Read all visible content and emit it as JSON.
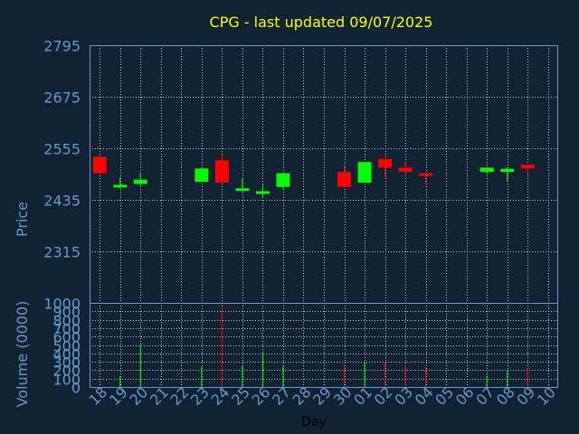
{
  "chart_data": {
    "type": "candlestick",
    "title": "CPG - last updated 09/07/2025",
    "price_axis": {
      "label": "Price",
      "ticks": [
        "2795",
        "2675",
        "2555",
        "2435",
        "2315"
      ],
      "ylim": [
        2195,
        2795
      ]
    },
    "volume_axis": {
      "label": "Volume (0000)",
      "ticks": [
        "1000",
        "900",
        "800",
        "700",
        "600",
        "500",
        "400",
        "300",
        "200",
        "100",
        "0"
      ],
      "ylim": [
        0,
        1000
      ]
    },
    "xlabel": "Day",
    "x_ticks": [
      "18",
      "19",
      "20",
      "21",
      "22",
      "23",
      "24",
      "25",
      "26",
      "27",
      "28",
      "29",
      "30",
      "01",
      "02",
      "03",
      "04",
      "05",
      "06",
      "07",
      "08",
      "09",
      "10"
    ],
    "grid": true,
    "colors": {
      "up": "#00ff00",
      "down": "#ff0000",
      "background": "#112233",
      "title": "#ffff00",
      "axis": "#6699cc"
    },
    "candles": [
      {
        "day": "18",
        "open": 2535,
        "close": 2497,
        "high": 2535,
        "low": 2497,
        "volume": 0
      },
      {
        "day": "19",
        "open": 2465,
        "close": 2470,
        "high": 2488,
        "low": 2462,
        "volume": 130
      },
      {
        "day": "20",
        "open": 2472,
        "close": 2482,
        "high": 2498,
        "low": 2468,
        "volume": 500
      },
      {
        "day": "23",
        "open": 2477,
        "close": 2508,
        "high": 2508,
        "low": 2477,
        "volume": 240
      },
      {
        "day": "24",
        "open": 2527,
        "close": 2475,
        "high": 2540,
        "low": 2475,
        "volume": 950
      },
      {
        "day": "25",
        "open": 2459,
        "close": 2462,
        "high": 2485,
        "low": 2456,
        "volume": 250
      },
      {
        "day": "26",
        "open": 2450,
        "close": 2455,
        "high": 2470,
        "low": 2442,
        "volume": 400
      },
      {
        "day": "27",
        "open": 2465,
        "close": 2497,
        "high": 2497,
        "low": 2460,
        "volume": 250
      },
      {
        "day": "30",
        "open": 2500,
        "close": 2465,
        "high": 2515,
        "low": 2465,
        "volume": 260
      },
      {
        "day": "01",
        "open": 2475,
        "close": 2523,
        "high": 2523,
        "low": 2475,
        "volume": 300
      },
      {
        "day": "02",
        "open": 2530,
        "close": 2510,
        "high": 2530,
        "low": 2487,
        "volume": 290
      },
      {
        "day": "03",
        "open": 2510,
        "close": 2500,
        "high": 2525,
        "low": 2500,
        "volume": 260
      },
      {
        "day": "04",
        "open": 2497,
        "close": 2493,
        "high": 2497,
        "low": 2472,
        "volume": 230
      },
      {
        "day": "07",
        "open": 2500,
        "close": 2510,
        "high": 2510,
        "low": 2495,
        "volume": 140
      },
      {
        "day": "08",
        "open": 2500,
        "close": 2507,
        "high": 2510,
        "low": 2477,
        "volume": 190
      },
      {
        "day": "09",
        "open": 2517,
        "close": 2508,
        "high": 2517,
        "low": 2500,
        "volume": 200
      }
    ]
  }
}
